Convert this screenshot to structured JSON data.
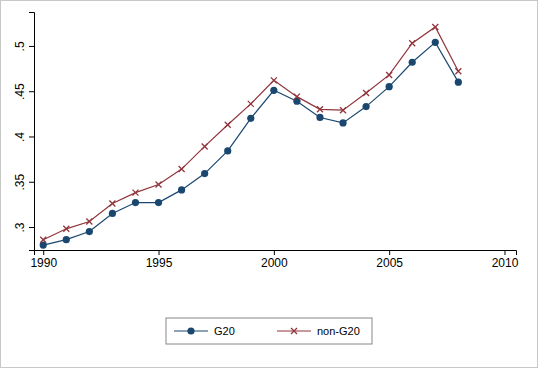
{
  "chart_data": {
    "type": "line",
    "x": [
      1990,
      1991,
      1992,
      1993,
      1994,
      1995,
      1996,
      1997,
      1998,
      1999,
      2000,
      2001,
      2002,
      2003,
      2004,
      2005,
      2006,
      2007,
      2008
    ],
    "series": [
      {
        "name": "G20",
        "color": "#1a476f",
        "marker": "circle",
        "line_style": "solid",
        "values": [
          0.28,
          0.286,
          0.295,
          0.315,
          0.327,
          0.327,
          0.341,
          0.359,
          0.384,
          0.42,
          0.451,
          0.439,
          0.421,
          0.415,
          0.433,
          0.455,
          0.482,
          0.504,
          0.46
        ]
      },
      {
        "name": "non-G20",
        "color": "#90353b",
        "marker": "x",
        "line_style": "solid",
        "values": [
          0.286,
          0.298,
          0.306,
          0.326,
          0.338,
          0.347,
          0.364,
          0.389,
          0.413,
          0.436,
          0.462,
          0.444,
          0.43,
          0.429,
          0.448,
          0.468,
          0.503,
          0.521,
          0.472
        ]
      }
    ],
    "xlim": [
      1989.6,
      2010.5
    ],
    "xticks": [
      1990,
      1995,
      2000,
      2005,
      2010
    ],
    "ylim": [
      0.2746,
      0.5375
    ],
    "yticks": [
      {
        "value": 0.3,
        "label": ".3"
      },
      {
        "value": 0.35,
        "label": ".35"
      },
      {
        "value": 0.4,
        "label": ".4"
      },
      {
        "value": 0.45,
        "label": ".45"
      },
      {
        "value": 0.5,
        "label": ".5"
      }
    ],
    "grid": false,
    "legend": "bottom"
  }
}
